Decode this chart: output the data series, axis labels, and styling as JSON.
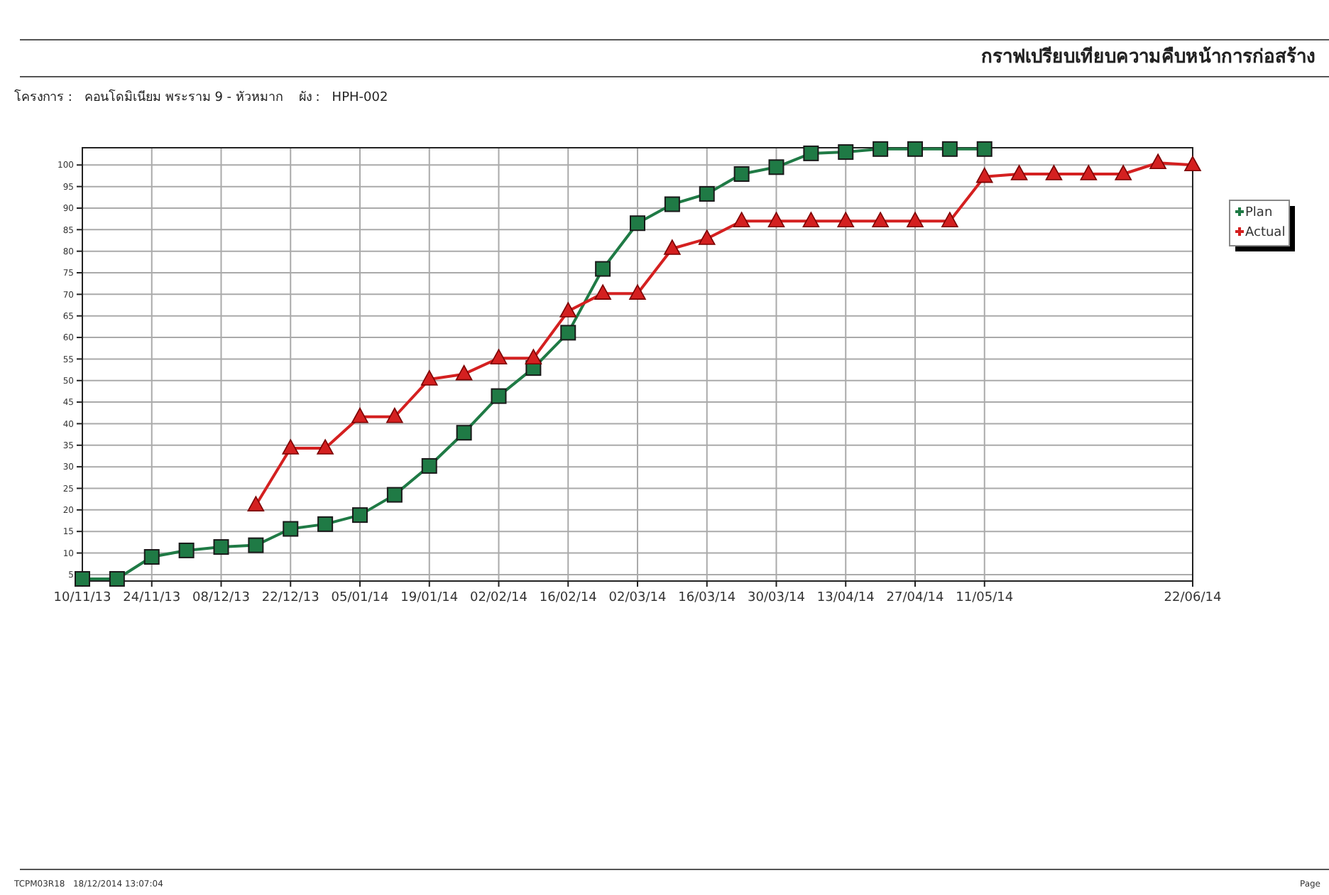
{
  "chart_data": {
    "type": "line",
    "title": "กราฟเปรียบเทียบความคืบหน้าการก่อสร้าง",
    "subtitle": "โครงการ :   คอนโดมิเนียม พระราม 9 - หัวหมาก    ผัง :   HPH-002",
    "annotations": [
      "TCPM03R18   18/12/2014 13:07:04",
      "Page"
    ],
    "xlim": [
      "2013-11-10",
      "2014-06-22"
    ],
    "xticks": [
      {
        "value": "2013-11-10",
        "label": "10/11/13"
      },
      {
        "value": "2013-11-24",
        "label": "24/11/13"
      },
      {
        "value": "2013-12-08",
        "label": "08/12/13"
      },
      {
        "value": "2013-12-22",
        "label": "22/12/13"
      },
      {
        "value": "2014-01-05",
        "label": "05/01/14"
      },
      {
        "value": "2014-01-19",
        "label": "19/01/14"
      },
      {
        "value": "2014-02-02",
        "label": "02/02/14"
      },
      {
        "value": "2014-02-16",
        "label": "16/02/14"
      },
      {
        "value": "2014-03-02",
        "label": "02/03/14"
      },
      {
        "value": "2014-03-16",
        "label": "16/03/14"
      },
      {
        "value": "2014-03-30",
        "label": "30/03/14"
      },
      {
        "value": "2014-04-13",
        "label": "13/04/14"
      },
      {
        "value": "2014-04-27",
        "label": "27/04/14"
      },
      {
        "value": "2014-05-11",
        "label": "11/05/14"
      },
      {
        "value": "2014-06-22",
        "label": "22/06/14"
      }
    ],
    "ylim": [
      3.5,
      104
    ],
    "yticks": [
      5,
      10,
      15,
      20,
      25,
      30,
      35,
      40,
      45,
      50,
      55,
      60,
      65,
      70,
      75,
      80,
      85,
      90,
      95,
      100
    ],
    "grid": true,
    "legend": "right",
    "series": [
      {
        "name": "Plan",
        "color": "#1f7a45",
        "marker": "square",
        "x": [
          "2013-11-10",
          "2013-11-17",
          "2013-11-24",
          "2013-12-01",
          "2013-12-08",
          "2013-12-15",
          "2013-12-22",
          "2013-12-29",
          "2014-01-05",
          "2014-01-12",
          "2014-01-19",
          "2014-01-26",
          "2014-02-02",
          "2014-02-09",
          "2014-02-16",
          "2014-02-23",
          "2014-03-02",
          "2014-03-09",
          "2014-03-16",
          "2014-03-23",
          "2014-03-30",
          "2014-04-06",
          "2014-04-13",
          "2014-04-20",
          "2014-04-27",
          "2014-05-04",
          "2014-05-11"
        ],
        "values": [
          4,
          4,
          9.1,
          10.6,
          11.4,
          11.8,
          15.6,
          16.7,
          18.8,
          23.5,
          30.2,
          37.9,
          46.4,
          52.9,
          61.1,
          75.9,
          86.5,
          90.9,
          93.3,
          97.9,
          99.5,
          102.7,
          103,
          103.7,
          103.7,
          103.7,
          103.7
        ]
      },
      {
        "name": "Actual",
        "color": "#d42020",
        "marker": "triangle",
        "x": [
          "2013-12-15",
          "2013-12-22",
          "2013-12-29",
          "2014-01-05",
          "2014-01-12",
          "2014-01-19",
          "2014-01-26",
          "2014-02-02",
          "2014-02-09",
          "2014-02-16",
          "2014-02-23",
          "2014-03-02",
          "2014-03-09",
          "2014-03-16",
          "2014-03-23",
          "2014-03-30",
          "2014-04-06",
          "2014-04-13",
          "2014-04-20",
          "2014-04-27",
          "2014-05-04",
          "2014-05-11",
          "2014-05-18",
          "2014-05-25",
          "2014-06-01",
          "2014-06-08",
          "2014-06-15",
          "2014-06-22"
        ],
        "values": [
          21.1,
          34.3,
          34.3,
          41.6,
          41.6,
          50.3,
          51.5,
          55.2,
          55.2,
          66.1,
          70.2,
          70.2,
          80.6,
          82.9,
          87,
          87,
          87,
          87,
          87,
          87,
          87,
          97.3,
          97.9,
          97.9,
          97.9,
          97.9,
          100.5,
          100
        ]
      }
    ]
  }
}
